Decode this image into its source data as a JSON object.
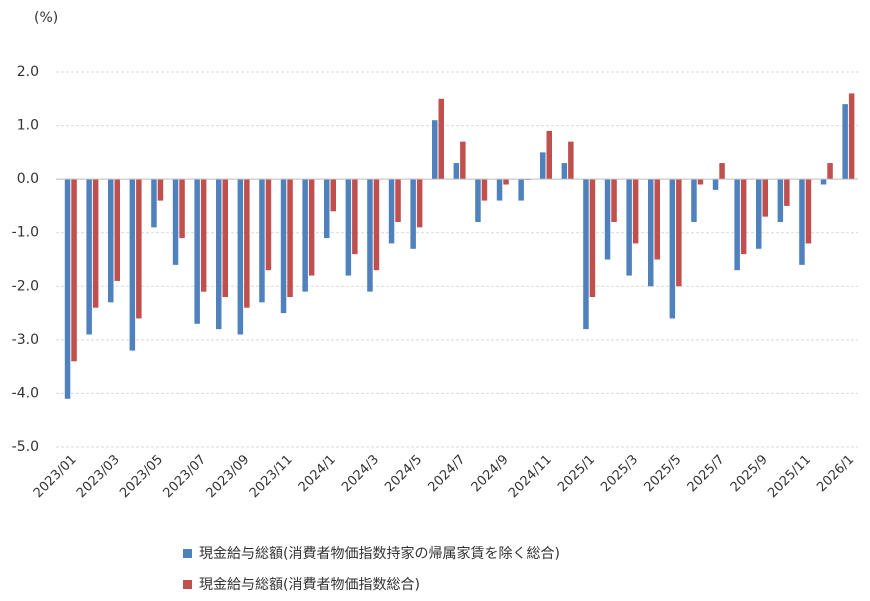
{
  "chart_data": {
    "type": "bar",
    "ylabel": "(%)",
    "ylim": [
      -5.0,
      2.0
    ],
    "yticks": [
      "2.0",
      "1.0",
      "0.0",
      "-1.0",
      "-2.0",
      "-3.0",
      "-4.0",
      "-5.0"
    ],
    "grid": true,
    "legend_position": "bottom",
    "categories": [
      "2023/01",
      "2023/02",
      "2023/03",
      "2023/04",
      "2023/05",
      "2023/06",
      "2023/07",
      "2023/08",
      "2023/09",
      "2023/10",
      "2023/11",
      "2023/12",
      "2024/1",
      "2024/2",
      "2024/3",
      "2024/4",
      "2024/5",
      "2024/6",
      "2024/7",
      "2024/8",
      "2024/9",
      "2024/10",
      "2024/11",
      "2024/12",
      "2025/1",
      "2025/2",
      "2025/3",
      "2025/4",
      "2025/5",
      "2025/6",
      "2025/7",
      "2025/8",
      "2025/9",
      "2025/10",
      "2025/11",
      "2025/12",
      "2026/1"
    ],
    "xtick_labels": [
      "2023/01",
      "2023/03",
      "2023/05",
      "2023/07",
      "2023/09",
      "2023/11",
      "2024/1",
      "2024/3",
      "2024/5",
      "2024/7",
      "2024/9",
      "2024/11",
      "2025/1",
      "2025/3",
      "2025/5",
      "2025/7",
      "2025/9",
      "2025/11",
      "2026/1"
    ],
    "series": [
      {
        "name": "現金給与総額(消費者物価指数持家の帰属家賃を除く総合)",
        "color": "#4f81bd",
        "values": [
          -4.1,
          -2.9,
          -2.3,
          -3.2,
          -0.9,
          -1.6,
          -2.7,
          -2.8,
          -2.9,
          -2.3,
          -2.5,
          -2.1,
          -1.1,
          -1.8,
          -2.1,
          -1.2,
          -1.3,
          1.1,
          0.3,
          -0.8,
          -0.4,
          -0.4,
          0.5,
          0.3,
          -2.8,
          -1.5,
          -1.8,
          -2.0,
          -2.6,
          -0.8,
          -0.2,
          -1.7,
          -1.3,
          -0.8,
          -1.6,
          -0.1,
          1.4
        ]
      },
      {
        "name": "現金給与総額(消費者物価指数総合)",
        "color": "#c0504d",
        "values": [
          -3.4,
          -2.4,
          -1.9,
          -2.6,
          -0.4,
          -1.1,
          -2.1,
          -2.2,
          -2.4,
          -1.7,
          -2.2,
          -1.8,
          -0.6,
          -1.4,
          -1.7,
          -0.8,
          -0.9,
          1.5,
          0.7,
          -0.4,
          -0.1,
          0.0,
          0.9,
          0.7,
          -2.2,
          -0.8,
          -1.2,
          -1.5,
          -2.0,
          -0.1,
          0.3,
          -1.4,
          -0.7,
          -0.5,
          -1.2,
          0.3,
          1.6
        ]
      }
    ]
  }
}
